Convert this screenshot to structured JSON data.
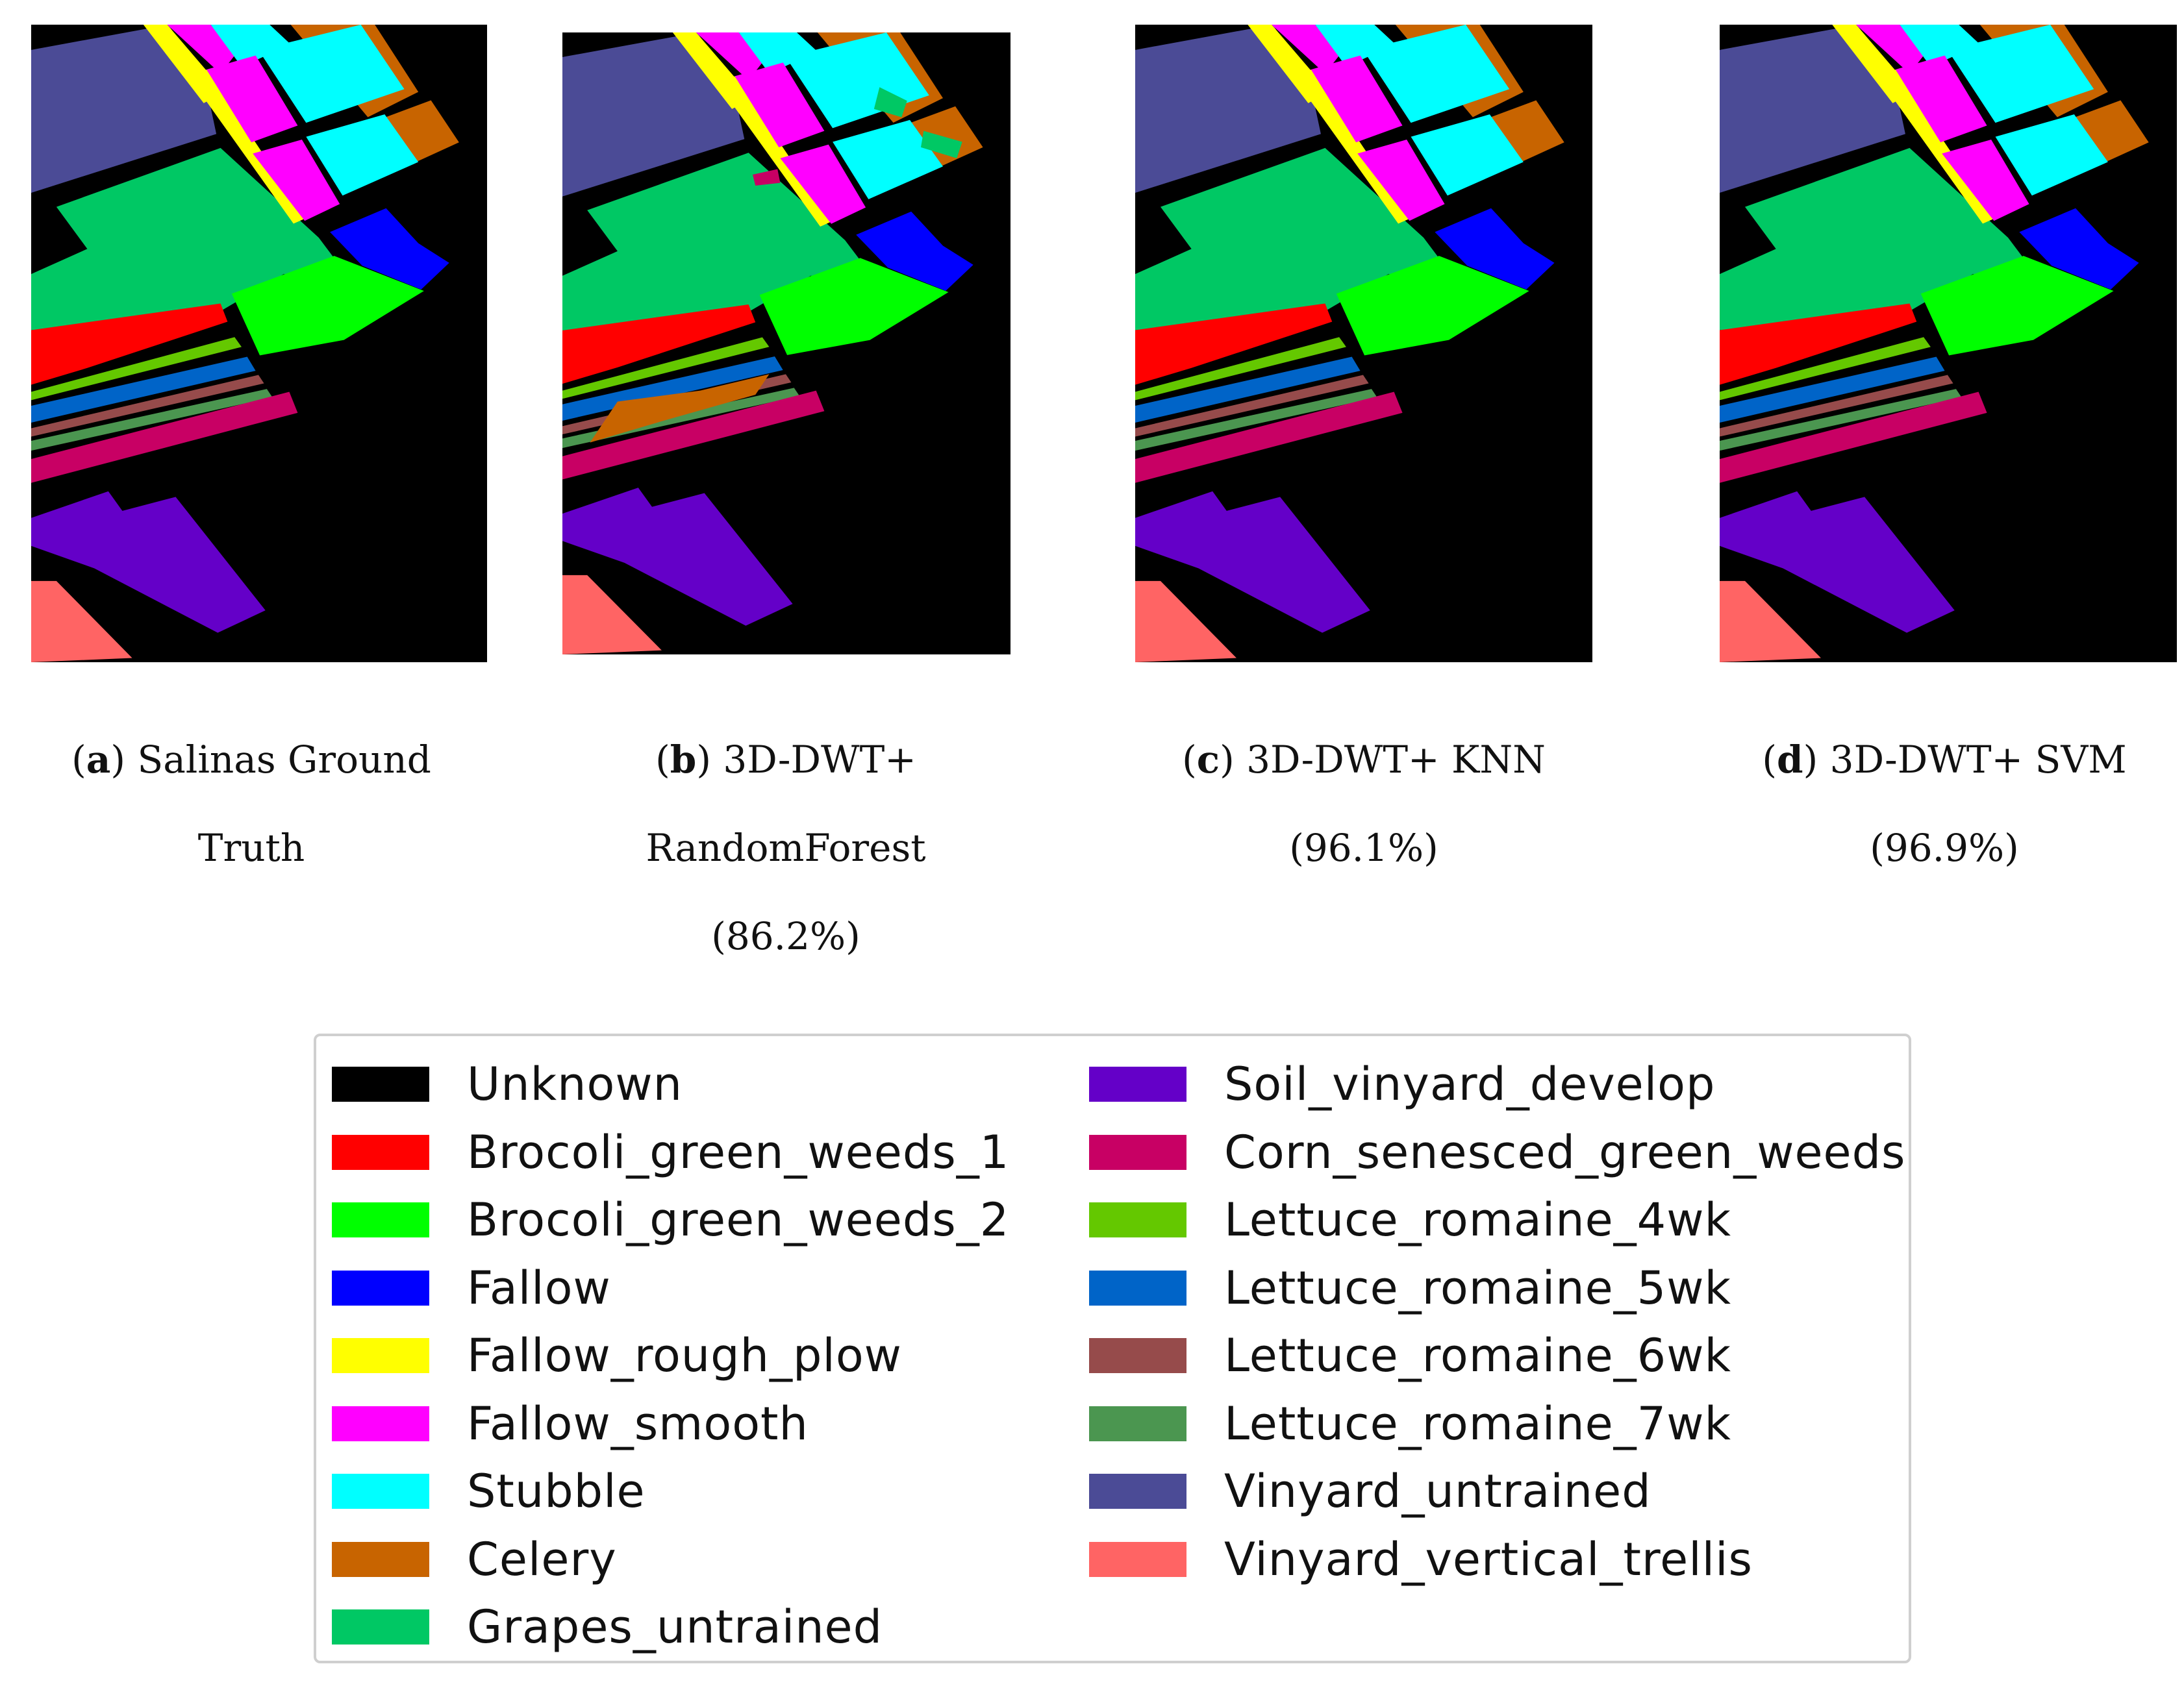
{
  "figure": {
    "panels": [
      {
        "id": "a",
        "letter": "a",
        "title_line1": "Salinas Ground",
        "title_line2": "Truth",
        "title_line3": ""
      },
      {
        "id": "b",
        "letter": "b",
        "title_line1": "3D-DWT+",
        "title_line2": "RandomForest",
        "title_line3": "(86.2%)"
      },
      {
        "id": "c",
        "letter": "c",
        "title_line1": "3D-DWT+ KNN",
        "title_line2": "(96.1%)",
        "title_line3": ""
      },
      {
        "id": "d",
        "letter": "d",
        "title_line1": "3D-DWT+ SVM",
        "title_line2": "(96.9%)",
        "title_line3": ""
      }
    ]
  },
  "legend": {
    "left": [
      {
        "label": "Unknown",
        "color": "#000000"
      },
      {
        "label": "Brocoli_green_weeds_1",
        "color": "#ff0000"
      },
      {
        "label": "Brocoli_green_weeds_2",
        "color": "#00ff00"
      },
      {
        "label": "Fallow",
        "color": "#0000ff"
      },
      {
        "label": "Fallow_rough_plow",
        "color": "#ffff00"
      },
      {
        "label": "Fallow_smooth",
        "color": "#ff00ff"
      },
      {
        "label": "Stubble",
        "color": "#00ffff"
      },
      {
        "label": "Celery",
        "color": "#c86400"
      },
      {
        "label": "Grapes_untrained",
        "color": "#00c864"
      }
    ],
    "right": [
      {
        "label": "Soil_vinyard_develop",
        "color": "#6400c8"
      },
      {
        "label": "Corn_senesced_green_weeds",
        "color": "#c80064"
      },
      {
        "label": "Lettuce_romaine_4wk",
        "color": "#64c800"
      },
      {
        "label": "Lettuce_romaine_5wk",
        "color": "#0064c8"
      },
      {
        "label": "Lettuce_romaine_6wk",
        "color": "#964b4b"
      },
      {
        "label": "Lettuce_romaine_7wk",
        "color": "#4b9650"
      },
      {
        "label": "Vinyard_untrained",
        "color": "#4b4b96"
      },
      {
        "label": "Vinyard_vertical_trellis",
        "color": "#ff6464"
      }
    ]
  }
}
